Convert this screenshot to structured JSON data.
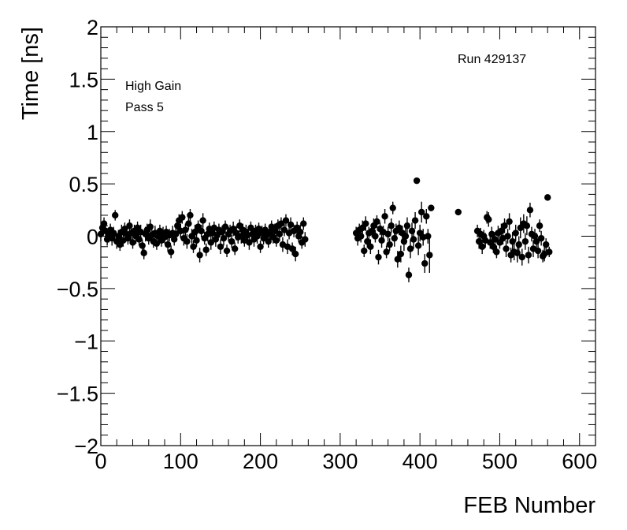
{
  "chart_data": {
    "type": "scatter",
    "xlabel": "FEB Number",
    "ylabel": "Time [ns]",
    "xlim": [
      0,
      620
    ],
    "ylim": [
      -2,
      2
    ],
    "x_ticks": [
      0,
      100,
      200,
      300,
      400,
      500,
      600
    ],
    "x_tick_labels": [
      "0",
      "100",
      "200",
      "300",
      "400",
      "500",
      "600"
    ],
    "y_ticks": [
      -2,
      -1.5,
      -1,
      -0.5,
      0,
      0.5,
      1,
      1.5,
      2
    ],
    "y_tick_labels": [
      "−2",
      "−1.5",
      "−1",
      "−0.5",
      "0",
      "0.5",
      "1",
      "1.5",
      "2"
    ],
    "annotations": [
      "High Gain",
      "Pass 5",
      "Run 429137"
    ],
    "grid": false,
    "marker_color": "#000000",
    "points": [
      {
        "x": 0,
        "y": 0.02,
        "err": 0.07
      },
      {
        "x": 2,
        "y": 0.08,
        "err": 0.06
      },
      {
        "x": 4,
        "y": 0.12,
        "err": 0.06
      },
      {
        "x": 6,
        "y": 0.05,
        "err": 0.07
      },
      {
        "x": 8,
        "y": -0.03,
        "err": 0.06
      },
      {
        "x": 10,
        "y": 0.01,
        "err": 0.07
      },
      {
        "x": 12,
        "y": 0.06,
        "err": 0.06
      },
      {
        "x": 14,
        "y": -0.02,
        "err": 0.07
      },
      {
        "x": 16,
        "y": 0.03,
        "err": 0.06
      },
      {
        "x": 18,
        "y": 0.2,
        "err": 0.05
      },
      {
        "x": 20,
        "y": -0.05,
        "err": 0.07
      },
      {
        "x": 22,
        "y": 0.0,
        "err": 0.06
      },
      {
        "x": 24,
        "y": -0.08,
        "err": 0.06
      },
      {
        "x": 26,
        "y": 0.04,
        "err": 0.07
      },
      {
        "x": 28,
        "y": -0.04,
        "err": 0.06
      },
      {
        "x": 30,
        "y": 0.07,
        "err": 0.06
      },
      {
        "x": 32,
        "y": 0.02,
        "err": 0.07
      },
      {
        "x": 34,
        "y": -0.02,
        "err": 0.06
      },
      {
        "x": 36,
        "y": 0.1,
        "err": 0.06
      },
      {
        "x": 38,
        "y": 0.03,
        "err": 0.07
      },
      {
        "x": 40,
        "y": -0.06,
        "err": 0.06
      },
      {
        "x": 42,
        "y": 0.05,
        "err": 0.06
      },
      {
        "x": 44,
        "y": 0.0,
        "err": 0.07
      },
      {
        "x": 46,
        "y": 0.08,
        "err": 0.06
      },
      {
        "x": 48,
        "y": -0.03,
        "err": 0.06
      },
      {
        "x": 50,
        "y": 0.04,
        "err": 0.07
      },
      {
        "x": 52,
        "y": -0.09,
        "err": 0.06
      },
      {
        "x": 54,
        "y": -0.16,
        "err": 0.06
      },
      {
        "x": 56,
        "y": 0.02,
        "err": 0.07
      },
      {
        "x": 58,
        "y": 0.06,
        "err": 0.06
      },
      {
        "x": 60,
        "y": -0.02,
        "err": 0.06
      },
      {
        "x": 62,
        "y": 0.09,
        "err": 0.07
      },
      {
        "x": 64,
        "y": 0.01,
        "err": 0.06
      },
      {
        "x": 66,
        "y": -0.05,
        "err": 0.06
      },
      {
        "x": 68,
        "y": 0.03,
        "err": 0.07
      },
      {
        "x": 70,
        "y": -0.07,
        "err": 0.06
      },
      {
        "x": 72,
        "y": 0.0,
        "err": 0.07
      },
      {
        "x": 74,
        "y": 0.05,
        "err": 0.06
      },
      {
        "x": 76,
        "y": -0.04,
        "err": 0.06
      },
      {
        "x": 78,
        "y": 0.02,
        "err": 0.07
      },
      {
        "x": 80,
        "y": -0.01,
        "err": 0.06
      },
      {
        "x": 82,
        "y": 0.04,
        "err": 0.06
      },
      {
        "x": 84,
        "y": -0.08,
        "err": 0.07
      },
      {
        "x": 86,
        "y": 0.01,
        "err": 0.06
      },
      {
        "x": 88,
        "y": -0.15,
        "err": 0.06
      },
      {
        "x": 90,
        "y": 0.03,
        "err": 0.07
      },
      {
        "x": 92,
        "y": -0.03,
        "err": 0.06
      },
      {
        "x": 94,
        "y": 0.02,
        "err": 0.06
      },
      {
        "x": 96,
        "y": 0.1,
        "err": 0.07
      },
      {
        "x": 98,
        "y": 0.15,
        "err": 0.06
      },
      {
        "x": 100,
        "y": 0.05,
        "err": 0.07
      },
      {
        "x": 102,
        "y": 0.18,
        "err": 0.06
      },
      {
        "x": 104,
        "y": -0.02,
        "err": 0.07
      },
      {
        "x": 106,
        "y": 0.06,
        "err": 0.06
      },
      {
        "x": 108,
        "y": -0.05,
        "err": 0.07
      },
      {
        "x": 110,
        "y": 0.12,
        "err": 0.06
      },
      {
        "x": 112,
        "y": 0.2,
        "err": 0.06
      },
      {
        "x": 114,
        "y": 0.0,
        "err": 0.07
      },
      {
        "x": 116,
        "y": -0.1,
        "err": 0.06
      },
      {
        "x": 118,
        "y": 0.04,
        "err": 0.07
      },
      {
        "x": 120,
        "y": -0.04,
        "err": 0.06
      },
      {
        "x": 122,
        "y": 0.09,
        "err": 0.06
      },
      {
        "x": 124,
        "y": -0.18,
        "err": 0.07
      },
      {
        "x": 126,
        "y": 0.05,
        "err": 0.06
      },
      {
        "x": 128,
        "y": 0.15,
        "err": 0.07
      },
      {
        "x": 130,
        "y": -0.02,
        "err": 0.06
      },
      {
        "x": 132,
        "y": -0.13,
        "err": 0.06
      },
      {
        "x": 134,
        "y": 0.02,
        "err": 0.07
      },
      {
        "x": 136,
        "y": 0.07,
        "err": 0.06
      },
      {
        "x": 138,
        "y": -0.06,
        "err": 0.07
      },
      {
        "x": 140,
        "y": 0.03,
        "err": 0.06
      },
      {
        "x": 142,
        "y": 0.08,
        "err": 0.06
      },
      {
        "x": 144,
        "y": -0.03,
        "err": 0.07
      },
      {
        "x": 146,
        "y": 0.01,
        "err": 0.06
      },
      {
        "x": 148,
        "y": 0.06,
        "err": 0.06
      },
      {
        "x": 150,
        "y": -0.1,
        "err": 0.07
      },
      {
        "x": 152,
        "y": 0.04,
        "err": 0.06
      },
      {
        "x": 154,
        "y": -0.02,
        "err": 0.07
      },
      {
        "x": 156,
        "y": 0.09,
        "err": 0.06
      },
      {
        "x": 158,
        "y": -0.14,
        "err": 0.06
      },
      {
        "x": 160,
        "y": 0.02,
        "err": 0.07
      },
      {
        "x": 162,
        "y": 0.05,
        "err": 0.06
      },
      {
        "x": 164,
        "y": -0.05,
        "err": 0.06
      },
      {
        "x": 166,
        "y": 0.07,
        "err": 0.07
      },
      {
        "x": 168,
        "y": -0.12,
        "err": 0.06
      },
      {
        "x": 170,
        "y": 0.03,
        "err": 0.07
      },
      {
        "x": 172,
        "y": -0.01,
        "err": 0.06
      },
      {
        "x": 174,
        "y": 0.1,
        "err": 0.06
      },
      {
        "x": 176,
        "y": 0.0,
        "err": 0.07
      },
      {
        "x": 178,
        "y": 0.06,
        "err": 0.06
      },
      {
        "x": 180,
        "y": -0.04,
        "err": 0.06
      },
      {
        "x": 182,
        "y": 0.04,
        "err": 0.07
      },
      {
        "x": 184,
        "y": 0.01,
        "err": 0.06
      },
      {
        "x": 186,
        "y": -0.06,
        "err": 0.07
      },
      {
        "x": 188,
        "y": 0.08,
        "err": 0.06
      },
      {
        "x": 190,
        "y": 0.02,
        "err": 0.06
      },
      {
        "x": 192,
        "y": -0.03,
        "err": 0.07
      },
      {
        "x": 194,
        "y": 0.05,
        "err": 0.06
      },
      {
        "x": 196,
        "y": 0.0,
        "err": 0.07
      },
      {
        "x": 198,
        "y": 0.07,
        "err": 0.06
      },
      {
        "x": 200,
        "y": -0.1,
        "err": 0.06
      },
      {
        "x": 202,
        "y": 0.03,
        "err": 0.07
      },
      {
        "x": 204,
        "y": -0.02,
        "err": 0.06
      },
      {
        "x": 206,
        "y": 0.06,
        "err": 0.06
      },
      {
        "x": 208,
        "y": 0.01,
        "err": 0.07
      },
      {
        "x": 210,
        "y": -0.05,
        "err": 0.06
      },
      {
        "x": 212,
        "y": 0.04,
        "err": 0.07
      },
      {
        "x": 214,
        "y": 0.09,
        "err": 0.06
      },
      {
        "x": 216,
        "y": -0.01,
        "err": 0.06
      },
      {
        "x": 218,
        "y": 0.05,
        "err": 0.07
      },
      {
        "x": 220,
        "y": -0.04,
        "err": 0.06
      },
      {
        "x": 222,
        "y": 0.1,
        "err": 0.06
      },
      {
        "x": 224,
        "y": 0.02,
        "err": 0.07
      },
      {
        "x": 226,
        "y": 0.12,
        "err": 0.06
      },
      {
        "x": 228,
        "y": -0.08,
        "err": 0.07
      },
      {
        "x": 230,
        "y": 0.06,
        "err": 0.06
      },
      {
        "x": 232,
        "y": 0.15,
        "err": 0.06
      },
      {
        "x": 234,
        "y": -0.1,
        "err": 0.07
      },
      {
        "x": 236,
        "y": 0.03,
        "err": 0.06
      },
      {
        "x": 238,
        "y": 0.11,
        "err": 0.07
      },
      {
        "x": 240,
        "y": -0.12,
        "err": 0.06
      },
      {
        "x": 242,
        "y": 0.05,
        "err": 0.06
      },
      {
        "x": 244,
        "y": -0.17,
        "err": 0.07
      },
      {
        "x": 246,
        "y": 0.08,
        "err": 0.06
      },
      {
        "x": 248,
        "y": 0.0,
        "err": 0.06
      },
      {
        "x": 250,
        "y": 0.04,
        "err": 0.07
      },
      {
        "x": 252,
        "y": -0.06,
        "err": 0.06
      },
      {
        "x": 254,
        "y": 0.12,
        "err": 0.06
      },
      {
        "x": 256,
        "y": -0.03,
        "err": 0.07
      },
      {
        "x": 320,
        "y": 0.03,
        "err": 0.06
      },
      {
        "x": 322,
        "y": -0.02,
        "err": 0.07
      },
      {
        "x": 324,
        "y": 0.06,
        "err": 0.06
      },
      {
        "x": 326,
        "y": 0.0,
        "err": 0.06
      },
      {
        "x": 328,
        "y": 0.08,
        "err": 0.07
      },
      {
        "x": 330,
        "y": -0.14,
        "err": 0.06
      },
      {
        "x": 332,
        "y": 0.12,
        "err": 0.07
      },
      {
        "x": 334,
        "y": -0.05,
        "err": 0.06
      },
      {
        "x": 336,
        "y": 0.03,
        "err": 0.06
      },
      {
        "x": 338,
        "y": -0.1,
        "err": 0.07
      },
      {
        "x": 340,
        "y": 0.05,
        "err": 0.06
      },
      {
        "x": 342,
        "y": 0.1,
        "err": 0.07
      },
      {
        "x": 344,
        "y": 0.0,
        "err": 0.06
      },
      {
        "x": 346,
        "y": 0.14,
        "err": 0.06
      },
      {
        "x": 348,
        "y": -0.2,
        "err": 0.07
      },
      {
        "x": 350,
        "y": 0.07,
        "err": 0.06
      },
      {
        "x": 352,
        "y": -0.04,
        "err": 0.07
      },
      {
        "x": 354,
        "y": 0.04,
        "err": 0.06
      },
      {
        "x": 356,
        "y": 0.19,
        "err": 0.07
      },
      {
        "x": 358,
        "y": -0.15,
        "err": 0.06
      },
      {
        "x": 360,
        "y": 0.02,
        "err": 0.07
      },
      {
        "x": 362,
        "y": -0.08,
        "err": 0.06
      },
      {
        "x": 364,
        "y": 0.1,
        "err": 0.07
      },
      {
        "x": 366,
        "y": 0.27,
        "err": 0.06
      },
      {
        "x": 368,
        "y": -0.02,
        "err": 0.08
      },
      {
        "x": 370,
        "y": 0.05,
        "err": 0.07
      },
      {
        "x": 372,
        "y": -0.22,
        "err": 0.08
      },
      {
        "x": 374,
        "y": 0.08,
        "err": 0.07
      },
      {
        "x": 376,
        "y": -0.17,
        "err": 0.08
      },
      {
        "x": 378,
        "y": 0.03,
        "err": 0.07
      },
      {
        "x": 380,
        "y": -0.05,
        "err": 0.09
      },
      {
        "x": 382,
        "y": 0.0,
        "err": 0.08
      },
      {
        "x": 384,
        "y": 0.1,
        "err": 0.08
      },
      {
        "x": 386,
        "y": -0.37,
        "err": 0.07
      },
      {
        "x": 388,
        "y": -0.12,
        "err": 0.09
      },
      {
        "x": 390,
        "y": 0.05,
        "err": 0.08
      },
      {
        "x": 392,
        "y": -0.03,
        "err": 0.09
      },
      {
        "x": 394,
        "y": 0.15,
        "err": 0.08
      },
      {
        "x": 396,
        "y": 0.53,
        "err": 0.02
      },
      {
        "x": 398,
        "y": -0.09,
        "err": 0.09
      },
      {
        "x": 400,
        "y": 0.03,
        "err": 0.08
      },
      {
        "x": 402,
        "y": 0.23,
        "err": 0.1
      },
      {
        "x": 404,
        "y": -0.01,
        "err": 0.08
      },
      {
        "x": 406,
        "y": -0.26,
        "err": 0.09
      },
      {
        "x": 408,
        "y": 0.19,
        "err": 0.07
      },
      {
        "x": 410,
        "y": 0.0,
        "err": 0.07
      },
      {
        "x": 412,
        "y": -0.18,
        "err": 0.17
      },
      {
        "x": 414,
        "y": 0.27,
        "err": 0.03
      },
      {
        "x": 448,
        "y": 0.23,
        "err": 0.02
      },
      {
        "x": 472,
        "y": 0.05,
        "err": 0.06
      },
      {
        "x": 474,
        "y": -0.05,
        "err": 0.07
      },
      {
        "x": 476,
        "y": 0.02,
        "err": 0.06
      },
      {
        "x": 478,
        "y": -0.1,
        "err": 0.07
      },
      {
        "x": 480,
        "y": 0.0,
        "err": 0.06
      },
      {
        "x": 482,
        "y": -0.04,
        "err": 0.07
      },
      {
        "x": 484,
        "y": 0.18,
        "err": 0.06
      },
      {
        "x": 486,
        "y": 0.16,
        "err": 0.07
      },
      {
        "x": 488,
        "y": -0.06,
        "err": 0.06
      },
      {
        "x": 490,
        "y": 0.02,
        "err": 0.07
      },
      {
        "x": 492,
        "y": -0.1,
        "err": 0.06
      },
      {
        "x": 494,
        "y": -0.03,
        "err": 0.07
      },
      {
        "x": 496,
        "y": -0.15,
        "err": 0.06
      },
      {
        "x": 498,
        "y": 0.03,
        "err": 0.07
      },
      {
        "x": 500,
        "y": -0.06,
        "err": 0.06
      },
      {
        "x": 502,
        "y": 0.05,
        "err": 0.07
      },
      {
        "x": 504,
        "y": -0.02,
        "err": 0.06
      },
      {
        "x": 506,
        "y": 0.1,
        "err": 0.07
      },
      {
        "x": 508,
        "y": -0.12,
        "err": 0.08
      },
      {
        "x": 510,
        "y": 0.0,
        "err": 0.07
      },
      {
        "x": 512,
        "y": 0.14,
        "err": 0.08
      },
      {
        "x": 514,
        "y": -0.18,
        "err": 0.07
      },
      {
        "x": 516,
        "y": -0.05,
        "err": 0.09
      },
      {
        "x": 518,
        "y": -0.15,
        "err": 0.08
      },
      {
        "x": 520,
        "y": 0.03,
        "err": 0.08
      },
      {
        "x": 522,
        "y": -0.16,
        "err": 0.09
      },
      {
        "x": 524,
        "y": -0.08,
        "err": 0.08
      },
      {
        "x": 526,
        "y": 0.08,
        "err": 0.1
      },
      {
        "x": 528,
        "y": -0.2,
        "err": 0.08
      },
      {
        "x": 530,
        "y": 0.12,
        "err": 0.09
      },
      {
        "x": 532,
        "y": -0.05,
        "err": 0.08
      },
      {
        "x": 534,
        "y": 0.1,
        "err": 0.09
      },
      {
        "x": 536,
        "y": -0.18,
        "err": 0.08
      },
      {
        "x": 538,
        "y": 0.25,
        "err": 0.07
      },
      {
        "x": 540,
        "y": 0.02,
        "err": 0.07
      },
      {
        "x": 542,
        "y": -0.12,
        "err": 0.08
      },
      {
        "x": 544,
        "y": 0.0,
        "err": 0.07
      },
      {
        "x": 546,
        "y": -0.05,
        "err": 0.08
      },
      {
        "x": 548,
        "y": -0.14,
        "err": 0.07
      },
      {
        "x": 550,
        "y": 0.1,
        "err": 0.06
      },
      {
        "x": 552,
        "y": -0.02,
        "err": 0.07
      },
      {
        "x": 554,
        "y": -0.19,
        "err": 0.06
      },
      {
        "x": 556,
        "y": -0.17,
        "err": 0.07
      },
      {
        "x": 558,
        "y": -0.08,
        "err": 0.06
      },
      {
        "x": 560,
        "y": 0.37,
        "err": 0.03
      },
      {
        "x": 562,
        "y": -0.15,
        "err": 0.05
      }
    ]
  }
}
